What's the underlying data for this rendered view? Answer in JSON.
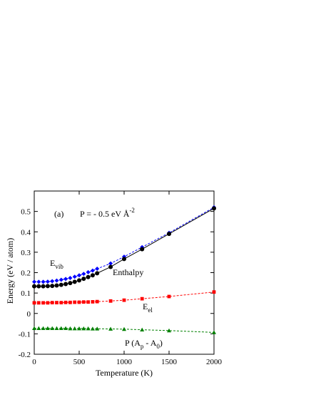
{
  "chart_data": {
    "type": "line",
    "y_title": "Energy  (eV / atom)",
    "x_title": "Temperature   (K)",
    "annotations": [
      {
        "parts": [
          "(a)"
        ]
      },
      {
        "parts": [
          "P = - 0.5 eV Å",
          "-2"
        ],
        "script": "sup"
      }
    ],
    "x": [
      0,
      50,
      100,
      150,
      200,
      250,
      300,
      350,
      400,
      450,
      500,
      550,
      600,
      650,
      700,
      850,
      1000,
      1200,
      1500,
      2000
    ],
    "series": [
      {
        "name": [
          "E",
          "vib"
        ],
        "script": "sub",
        "color": "#0000ff",
        "marker": "diamond",
        "dashed": true,
        "values": [
          0.155,
          0.155,
          0.155,
          0.156,
          0.158,
          0.161,
          0.165,
          0.169,
          0.174,
          0.18,
          0.187,
          0.194,
          0.202,
          0.21,
          0.219,
          0.245,
          0.278,
          0.325,
          0.395,
          0.52
        ]
      },
      {
        "name": [
          "Enthalpy"
        ],
        "color": "#000000",
        "marker": "circle",
        "dashed": false,
        "values": [
          0.133,
          0.133,
          0.133,
          0.134,
          0.135,
          0.137,
          0.14,
          0.144,
          0.149,
          0.155,
          0.162,
          0.17,
          0.178,
          0.187,
          0.197,
          0.228,
          0.267,
          0.315,
          0.39,
          0.515
        ]
      },
      {
        "name": [
          "E",
          "el"
        ],
        "script": "sub",
        "color": "#ff0000",
        "marker": "square",
        "dashed": true,
        "values": [
          0.052,
          0.052,
          0.052,
          0.052,
          0.053,
          0.053,
          0.053,
          0.054,
          0.054,
          0.055,
          0.055,
          0.056,
          0.056,
          0.057,
          0.058,
          0.061,
          0.065,
          0.072,
          0.083,
          0.105
        ]
      },
      {
        "name": [
          "P (A",
          "p",
          " - A",
          "0",
          ")"
        ],
        "script": "sub",
        "color": "#008000",
        "marker": "triangle",
        "dashed": true,
        "values": [
          -0.073,
          -0.073,
          -0.073,
          -0.073,
          -0.073,
          -0.073,
          -0.073,
          -0.073,
          -0.074,
          -0.074,
          -0.074,
          -0.074,
          -0.074,
          -0.075,
          -0.075,
          -0.076,
          -0.077,
          -0.08,
          -0.084,
          -0.093
        ]
      }
    ],
    "xlim": [
      0,
      2000
    ],
    "xticks": [
      0,
      500,
      1000,
      1500,
      2000
    ],
    "ylim": [
      -0.2,
      0.6
    ],
    "yticks": [
      -0.2,
      -0.1,
      0,
      0.1,
      0.2,
      0.3,
      0.4,
      0.5
    ]
  }
}
